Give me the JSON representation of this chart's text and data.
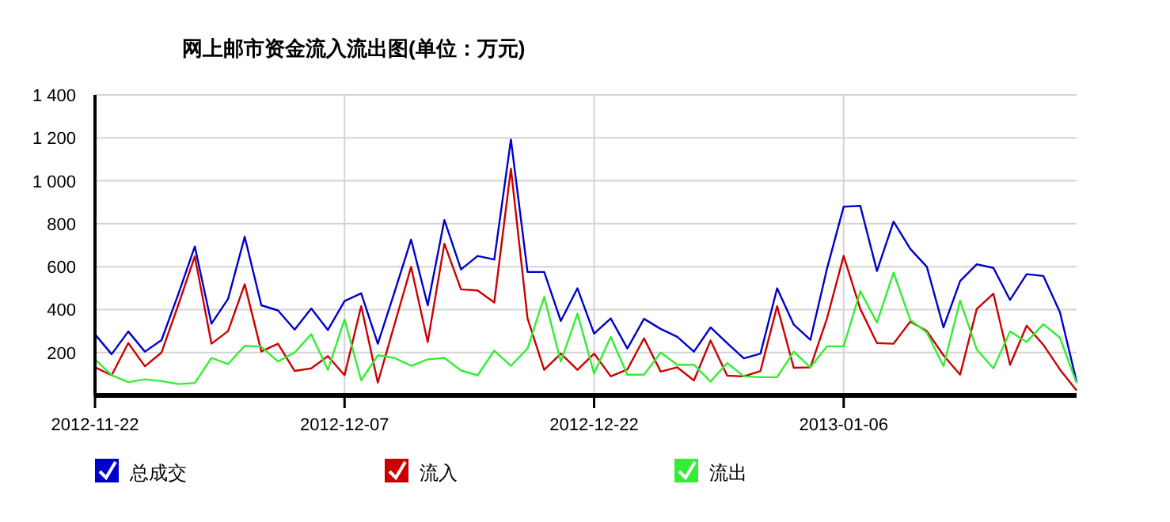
{
  "chart_data": {
    "type": "line",
    "title": "网上邮市资金流入流出图(单位：万元)",
    "x": [
      "2012-11-22",
      "2012-11-23",
      "2012-11-24",
      "2012-11-25",
      "2012-11-26",
      "2012-11-27",
      "2012-11-28",
      "2012-11-29",
      "2012-11-30",
      "2012-12-01",
      "2012-12-02",
      "2012-12-03",
      "2012-12-04",
      "2012-12-05",
      "2012-12-06",
      "2012-12-07",
      "2012-12-08",
      "2012-12-09",
      "2012-12-10",
      "2012-12-11",
      "2012-12-12",
      "2012-12-13",
      "2012-12-14",
      "2012-12-15",
      "2012-12-16",
      "2012-12-17",
      "2012-12-18",
      "2012-12-19",
      "2012-12-20",
      "2012-12-21",
      "2012-12-22",
      "2012-12-23",
      "2012-12-24",
      "2012-12-25",
      "2012-12-26",
      "2012-12-27",
      "2012-12-28",
      "2012-12-29",
      "2012-12-30",
      "2012-12-31",
      "2013-01-01",
      "2013-01-02",
      "2013-01-03",
      "2013-01-04",
      "2013-01-05",
      "2013-01-06",
      "2013-01-07",
      "2013-01-08",
      "2013-01-09",
      "2013-01-10",
      "2013-01-11",
      "2013-01-12",
      "2013-01-13",
      "2013-01-14",
      "2013-01-15",
      "2013-01-16",
      "2013-01-17",
      "2013-01-18",
      "2013-01-19",
      "2013-01-20"
    ],
    "series": [
      {
        "name": "总成交",
        "color": "#0000cc",
        "values": [
          285,
          192,
          298,
          204,
          258,
          470,
          694,
          334,
          450,
          739,
          420,
          396,
          307,
          405,
          305,
          440,
          476,
          241,
          480,
          726,
          420,
          817,
          587,
          650,
          633,
          1192,
          575,
          575,
          347,
          499,
          288,
          359,
          219,
          357,
          310,
          273,
          204,
          317,
          244,
          173,
          195,
          499,
          330,
          259,
          591,
          879,
          883,
          580,
          810,
          683,
          599,
          317,
          533,
          611,
          594,
          445,
          565,
          557,
          388,
          65
        ]
      },
      {
        "name": "流入",
        "color": "#cc0000",
        "values": [
          131,
          94,
          244,
          136,
          200,
          420,
          648,
          241,
          300,
          518,
          205,
          241,
          114,
          126,
          183,
          94,
          416,
          60,
          330,
          599,
          249,
          707,
          494,
          489,
          433,
          1057,
          359,
          119,
          195,
          119,
          195,
          89,
          121,
          266,
          111,
          131,
          70,
          256,
          92,
          89,
          114,
          416,
          129,
          131,
          359,
          650,
          403,
          244,
          241,
          344,
          300,
          187,
          97,
          403,
          474,
          143,
          325,
          236,
          121,
          23
        ]
      },
      {
        "name": "流出",
        "color": "#33ee33",
        "values": [
          168,
          94,
          62,
          75,
          67,
          53,
          58,
          175,
          146,
          231,
          227,
          158,
          200,
          285,
          119,
          354,
          70,
          187,
          175,
          138,
          168,
          175,
          116,
          94,
          209,
          138,
          219,
          459,
          158,
          381,
          102,
          273,
          97,
          97,
          200,
          143,
          143,
          65,
          151,
          89,
          85,
          85,
          204,
          131,
          229,
          229,
          486,
          339,
          572,
          352,
          293,
          136,
          442,
          214,
          126,
          298,
          249,
          332,
          269,
          58
        ]
      }
    ],
    "xlim": [
      "2012-11-22",
      "2013-01-20"
    ],
    "xticks": [
      {
        "value": "2012-11-22",
        "label": "2012-11-22"
      },
      {
        "value": "2012-12-07",
        "label": "2012-12-07"
      },
      {
        "value": "2012-12-22",
        "label": "2012-12-22"
      },
      {
        "value": "2013-01-06",
        "label": "2013-01-06"
      }
    ],
    "ylim": [
      0,
      1400
    ],
    "yticks": [
      200,
      400,
      600,
      800,
      {
        "value": 1000,
        "label": "1 000"
      },
      {
        "value": 1200,
        "label": "1 200"
      },
      {
        "value": 1400,
        "label": "1 400"
      }
    ],
    "grid": true,
    "legend": "bottom",
    "marker": "none",
    "line_style": "solid"
  }
}
